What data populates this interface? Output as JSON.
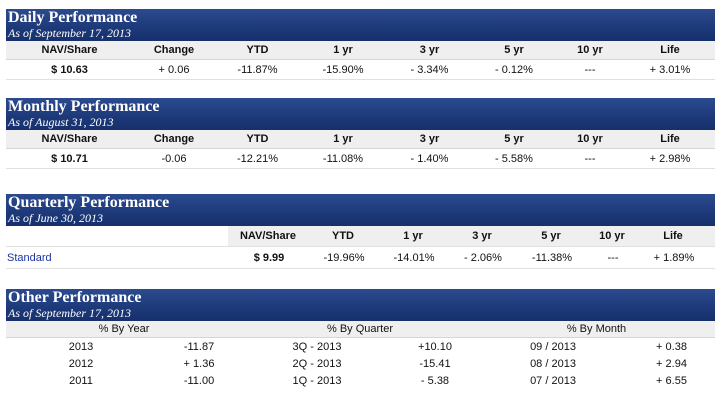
{
  "daily": {
    "title": "Daily Performance",
    "asof": "As of September 17, 2013",
    "headers": [
      "NAV/Share",
      "Change",
      "YTD",
      "1 yr",
      "3 yr",
      "5 yr",
      "10 yr",
      "Life"
    ],
    "values": [
      "$ 10.63",
      "+ 0.06",
      "-11.87%",
      "-15.90%",
      "- 3.34%",
      "- 0.12%",
      "---",
      "+ 3.01%"
    ]
  },
  "monthly": {
    "title": "Monthly Performance",
    "asof": "As of August 31, 2013",
    "headers": [
      "NAV/Share",
      "Change",
      "YTD",
      "1 yr",
      "3 yr",
      "5 yr",
      "10 yr",
      "Life"
    ],
    "values": [
      "$ 10.71",
      "-0.06",
      "-12.21%",
      "-11.08%",
      "- 1.40%",
      "- 5.58%",
      "---",
      "+ 2.98%"
    ]
  },
  "quarterly": {
    "title": "Quarterly Performance",
    "asof": "As of June 30, 2013",
    "headers": [
      "NAV/Share",
      "YTD",
      "1 yr",
      "3 yr",
      "5 yr",
      "10 yr",
      "Life"
    ],
    "row_label": "Standard",
    "values": [
      "$ 9.99",
      "-19.96%",
      "-14.01%",
      "- 2.06%",
      "-11.38%",
      "---",
      "+ 1.89%"
    ]
  },
  "other": {
    "title": "Other Performance",
    "asof": "As of September 17, 2013",
    "headers": [
      "% By Year",
      "% By Quarter",
      "% By Month"
    ],
    "rows": [
      {
        "year": "2013",
        "year_val": "-11.87",
        "quarter": "3Q - 2013",
        "quarter_val": "+10.10",
        "month": "09 / 2013",
        "month_val": "+ 0.38"
      },
      {
        "year": "2012",
        "year_val": "+ 1.36",
        "quarter": "2Q - 2013",
        "quarter_val": "-15.41",
        "month": "08 / 2013",
        "month_val": "+ 2.94"
      },
      {
        "year": "2011",
        "year_val": "-11.00",
        "quarter": "1Q - 2013",
        "quarter_val": "- 5.38",
        "month": "07 / 2013",
        "month_val": "+ 6.55"
      }
    ]
  }
}
